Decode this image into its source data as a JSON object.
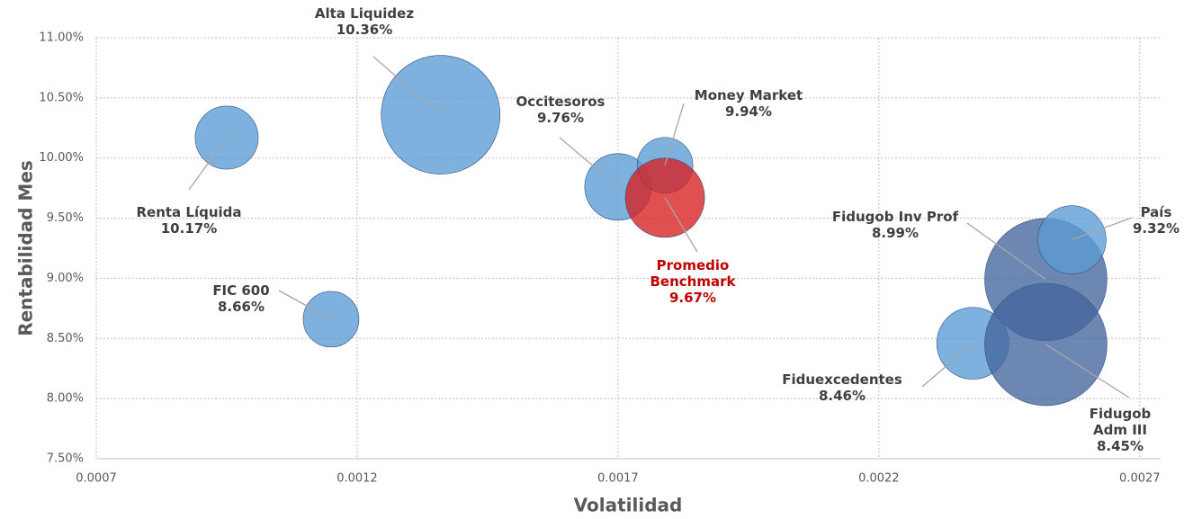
{
  "chart_data": {
    "type": "bubble",
    "xlabel": "Volatilidad",
    "ylabel": "Rentabilidad Mes",
    "xlim": [
      0.0007,
      0.00274
    ],
    "xticks": [
      0.0007,
      0.0012,
      0.0017,
      0.0022,
      0.0027
    ],
    "ylim": [
      7.5,
      11
    ],
    "yticks": [
      {
        "value": 7.5,
        "label": "7.50%"
      },
      {
        "value": 8,
        "label": "8.00%"
      },
      {
        "value": 8.5,
        "label": "8.50%"
      },
      {
        "value": 9,
        "label": "9.00%"
      },
      {
        "value": 9.5,
        "label": "9.50%"
      },
      {
        "value": 10,
        "label": "10.00%"
      },
      {
        "value": 10.5,
        "label": "10.50%"
      },
      {
        "value": 11,
        "label": "11.00%"
      }
    ],
    "grid": true,
    "series": [
      {
        "name": "Renta Líquida",
        "color": "#5b9bd5",
        "x": [
          0.00095
        ],
        "values": [
          10.17
        ],
        "value_labels": [
          "10.17%"
        ],
        "sizes": [
          12.3
        ]
      },
      {
        "name": "Alta Liquidez",
        "color": "#5b9bd5",
        "x": [
          0.00136
        ],
        "values": [
          10.36
        ],
        "value_labels": [
          "10.36%"
        ],
        "sizes": [
          43.6
        ]
      },
      {
        "name": "Occitesoros",
        "color": "#5b9bd5",
        "x": [
          0.0017
        ],
        "values": [
          9.76
        ],
        "value_labels": [
          "9.76%"
        ],
        "sizes": [
          13.7
        ]
      },
      {
        "name": "Money Market",
        "color": "#5b9bd5",
        "x": [
          0.00179
        ],
        "values": [
          9.94
        ],
        "value_labels": [
          "9.94%"
        ],
        "sizes": [
          9.6
        ]
      },
      {
        "name": "Promedio Benchmark",
        "color": "#d71f1f",
        "x": [
          0.00179
        ],
        "values": [
          9.67
        ],
        "value_labels": [
          "9.67%"
        ],
        "sizes": [
          19.4
        ]
      },
      {
        "name": "FIC 600",
        "color": "#5b9bd5",
        "x": [
          0.00115
        ],
        "values": [
          8.66
        ],
        "value_labels": [
          "8.66%"
        ],
        "sizes": [
          9.6
        ]
      },
      {
        "name": "Fidugob Inv Prof",
        "color": "#44659e",
        "x": [
          0.00252
        ],
        "values": [
          8.99
        ],
        "value_labels": [
          "8.99%"
        ],
        "sizes": [
          46.2
        ]
      },
      {
        "name": "País",
        "color": "#5b9bd5",
        "x": [
          0.00257
        ],
        "values": [
          9.32
        ],
        "value_labels": [
          "9.32%"
        ],
        "sizes": [
          14.4
        ]
      },
      {
        "name": "Fiduexcedentes",
        "color": "#5b9bd5",
        "x": [
          0.00238
        ],
        "values": [
          8.46
        ],
        "value_labels": [
          "8.46%"
        ],
        "sizes": [
          16
        ]
      },
      {
        "name": "Fidugob Adm III",
        "color": "#44659e",
        "x": [
          0.00252
        ],
        "values": [
          8.45
        ],
        "value_labels": [
          "8.45%"
        ],
        "sizes": [
          46.2
        ]
      }
    ]
  }
}
